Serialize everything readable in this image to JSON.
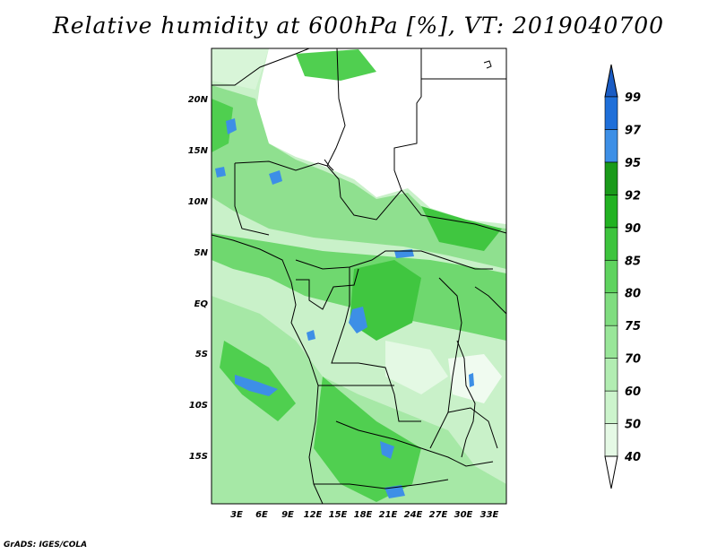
{
  "title": "Relative humidity at 600hPa [%], VT: 2019040700",
  "footer": "GrADS: IGES/COLA",
  "lat_labels": [
    "20N",
    "15N",
    "10N",
    "5N",
    "EQ",
    "5S",
    "10S",
    "15S"
  ],
  "lon_labels": [
    "3E",
    "6E",
    "9E",
    "12E",
    "15E",
    "18E",
    "21E",
    "24E",
    "27E",
    "30E",
    "33E"
  ],
  "colorbar": {
    "levels": [
      "40",
      "50",
      "60",
      "70",
      "75",
      "80",
      "85",
      "90",
      "92",
      "95",
      "97",
      "99"
    ],
    "colors": [
      "#ffffff",
      "#e5f9e5",
      "#ccf4cc",
      "#b2edb2",
      "#99e699",
      "#80dd80",
      "#5fd35f",
      "#3dc43d",
      "#22b222",
      "#1a9a1a",
      "#3d8fe6",
      "#1f6fd9",
      "#1a5cc4"
    ]
  }
}
